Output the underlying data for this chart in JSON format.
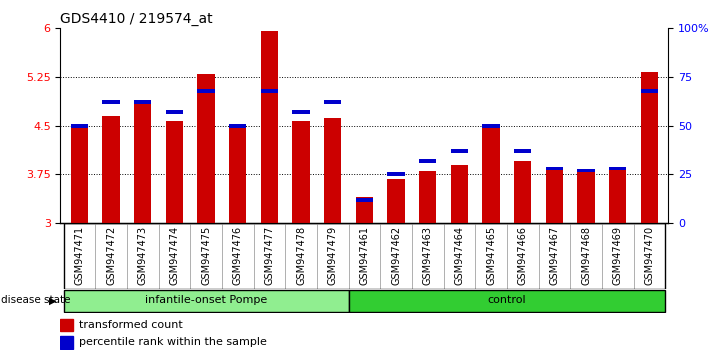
{
  "title": "GDS4410 / 219574_at",
  "samples": [
    "GSM947471",
    "GSM947472",
    "GSM947473",
    "GSM947474",
    "GSM947475",
    "GSM947476",
    "GSM947477",
    "GSM947478",
    "GSM947479",
    "GSM947461",
    "GSM947462",
    "GSM947463",
    "GSM947464",
    "GSM947465",
    "GSM947466",
    "GSM947467",
    "GSM947468",
    "GSM947469",
    "GSM947470"
  ],
  "red_values": [
    4.5,
    4.65,
    4.85,
    4.57,
    5.3,
    4.5,
    5.96,
    4.57,
    4.62,
    3.4,
    3.68,
    3.8,
    3.9,
    4.5,
    3.95,
    3.84,
    3.82,
    3.84,
    5.32
  ],
  "blue_percentiles": [
    50,
    62,
    62,
    57,
    68,
    50,
    68,
    57,
    62,
    12,
    25,
    32,
    37,
    50,
    37,
    28,
    27,
    28,
    68
  ],
  "group_labels": [
    "infantile-onset Pompe",
    "control"
  ],
  "group_sizes": [
    9,
    10
  ],
  "ymin": 3.0,
  "ymax": 6.0,
  "yticks_left": [
    3.0,
    3.75,
    4.5,
    5.25,
    6.0
  ],
  "ytick_labels_left": [
    "3",
    "3.75",
    "4.5",
    "5.25",
    "6"
  ],
  "yticks_right": [
    0,
    25,
    50,
    75,
    100
  ],
  "bar_color": "#CC0000",
  "marker_color": "#0000CC",
  "background_color": "#ffffff",
  "legend_labels": [
    "transformed count",
    "percentile rank within the sample"
  ],
  "group_color_light": "#90EE90",
  "group_color_dark": "#32CD32"
}
